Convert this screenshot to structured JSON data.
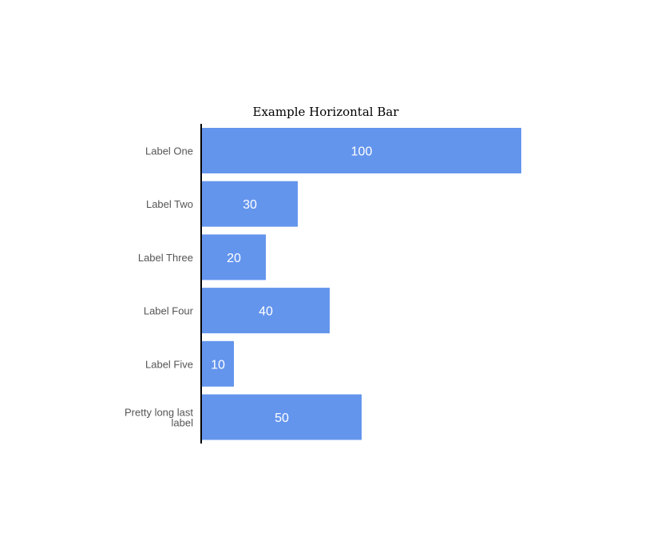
{
  "chart_data": {
    "type": "bar",
    "orientation": "horizontal",
    "title": "Example Horizontal Bar",
    "categories": [
      "Label One",
      "Label Two",
      "Label Three",
      "Label Four",
      "Label Five",
      "Pretty long last label"
    ],
    "values": [
      100,
      30,
      20,
      40,
      10,
      50
    ],
    "xlim": [
      0,
      100
    ],
    "grid": false,
    "legend": "none",
    "bar_color": "#6495ED",
    "value_label_color": "#ffffff"
  }
}
